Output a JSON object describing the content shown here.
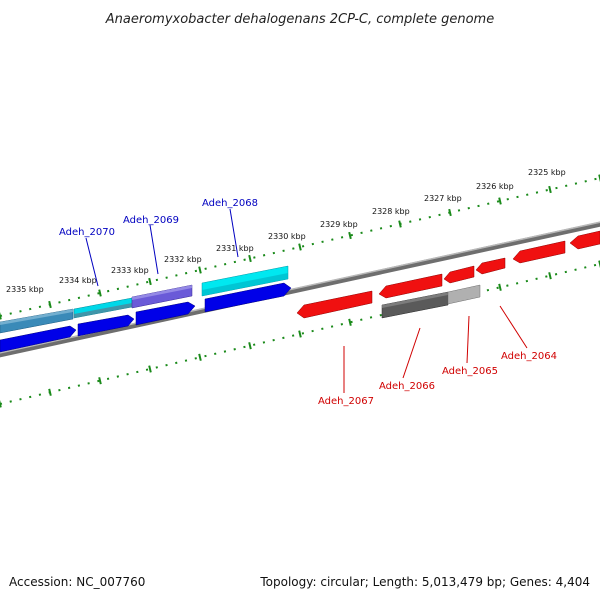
{
  "title": "Anaeromyxobacter dehalogenans 2CP-C, complete genome",
  "footer": {
    "accession": "Accession: NC_007760",
    "summary": "Topology: circular; Length: 5,013,479 bp; Genes: 4,404"
  },
  "scale_ticks": [
    {
      "label": "2325 kbp"
    },
    {
      "label": "2326 kbp"
    },
    {
      "label": "2327 kbp"
    },
    {
      "label": "2328 kbp"
    },
    {
      "label": "2329 kbp"
    },
    {
      "label": "2330 kbp"
    },
    {
      "label": "2331 kbp"
    },
    {
      "label": "2332 kbp"
    },
    {
      "label": "2333 kbp"
    },
    {
      "label": "2334 kbp"
    },
    {
      "label": "2335 kbp"
    }
  ],
  "forward_genes": [
    {
      "name": "Adeh_2070",
      "color": "#00a8c8"
    },
    {
      "name": "Adeh_2069",
      "color": "#4848c8"
    },
    {
      "name": "Adeh_2068",
      "color": "#00c8d8"
    }
  ],
  "reverse_genes": [
    {
      "name": "Adeh_2067",
      "color": "#e00000"
    },
    {
      "name": "Adeh_2066",
      "color": "#505050"
    },
    {
      "name": "Adeh_2065",
      "color": "#a0a0a0"
    },
    {
      "name": "Adeh_2064",
      "color": "#e00000"
    }
  ],
  "colors": {
    "forward_label": "#0000c0",
    "reverse_label": "#d00000",
    "backbone": "#808080",
    "ticks": "#1a8a1a"
  }
}
